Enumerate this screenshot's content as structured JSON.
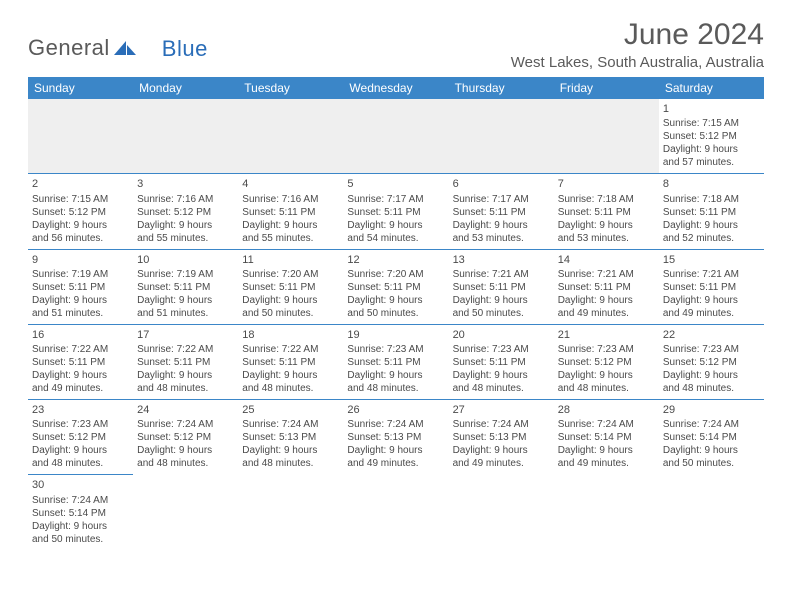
{
  "logo": {
    "text1": "General",
    "text2": "Blue"
  },
  "title": "June 2024",
  "location": "West Lakes, South Australia, Australia",
  "colors": {
    "header_bg": "#3b86c8",
    "header_text": "#ffffff",
    "blank_bg": "#efefef",
    "border": "#3b86c8",
    "text": "#4a4a4a",
    "logo_gray": "#5a5a5a",
    "logo_blue": "#2a6db8"
  },
  "day_headers": [
    "Sunday",
    "Monday",
    "Tuesday",
    "Wednesday",
    "Thursday",
    "Friday",
    "Saturday"
  ],
  "weeks": [
    [
      null,
      null,
      null,
      null,
      null,
      null,
      {
        "n": "1",
        "sr": "7:15 AM",
        "ss": "5:12 PM",
        "dl": "9 hours and 57 minutes."
      }
    ],
    [
      {
        "n": "2",
        "sr": "7:15 AM",
        "ss": "5:12 PM",
        "dl": "9 hours and 56 minutes."
      },
      {
        "n": "3",
        "sr": "7:16 AM",
        "ss": "5:12 PM",
        "dl": "9 hours and 55 minutes."
      },
      {
        "n": "4",
        "sr": "7:16 AM",
        "ss": "5:11 PM",
        "dl": "9 hours and 55 minutes."
      },
      {
        "n": "5",
        "sr": "7:17 AM",
        "ss": "5:11 PM",
        "dl": "9 hours and 54 minutes."
      },
      {
        "n": "6",
        "sr": "7:17 AM",
        "ss": "5:11 PM",
        "dl": "9 hours and 53 minutes."
      },
      {
        "n": "7",
        "sr": "7:18 AM",
        "ss": "5:11 PM",
        "dl": "9 hours and 53 minutes."
      },
      {
        "n": "8",
        "sr": "7:18 AM",
        "ss": "5:11 PM",
        "dl": "9 hours and 52 minutes."
      }
    ],
    [
      {
        "n": "9",
        "sr": "7:19 AM",
        "ss": "5:11 PM",
        "dl": "9 hours and 51 minutes."
      },
      {
        "n": "10",
        "sr": "7:19 AM",
        "ss": "5:11 PM",
        "dl": "9 hours and 51 minutes."
      },
      {
        "n": "11",
        "sr": "7:20 AM",
        "ss": "5:11 PM",
        "dl": "9 hours and 50 minutes."
      },
      {
        "n": "12",
        "sr": "7:20 AM",
        "ss": "5:11 PM",
        "dl": "9 hours and 50 minutes."
      },
      {
        "n": "13",
        "sr": "7:21 AM",
        "ss": "5:11 PM",
        "dl": "9 hours and 50 minutes."
      },
      {
        "n": "14",
        "sr": "7:21 AM",
        "ss": "5:11 PM",
        "dl": "9 hours and 49 minutes."
      },
      {
        "n": "15",
        "sr": "7:21 AM",
        "ss": "5:11 PM",
        "dl": "9 hours and 49 minutes."
      }
    ],
    [
      {
        "n": "16",
        "sr": "7:22 AM",
        "ss": "5:11 PM",
        "dl": "9 hours and 49 minutes."
      },
      {
        "n": "17",
        "sr": "7:22 AM",
        "ss": "5:11 PM",
        "dl": "9 hours and 48 minutes."
      },
      {
        "n": "18",
        "sr": "7:22 AM",
        "ss": "5:11 PM",
        "dl": "9 hours and 48 minutes."
      },
      {
        "n": "19",
        "sr": "7:23 AM",
        "ss": "5:11 PM",
        "dl": "9 hours and 48 minutes."
      },
      {
        "n": "20",
        "sr": "7:23 AM",
        "ss": "5:11 PM",
        "dl": "9 hours and 48 minutes."
      },
      {
        "n": "21",
        "sr": "7:23 AM",
        "ss": "5:12 PM",
        "dl": "9 hours and 48 minutes."
      },
      {
        "n": "22",
        "sr": "7:23 AM",
        "ss": "5:12 PM",
        "dl": "9 hours and 48 minutes."
      }
    ],
    [
      {
        "n": "23",
        "sr": "7:23 AM",
        "ss": "5:12 PM",
        "dl": "9 hours and 48 minutes."
      },
      {
        "n": "24",
        "sr": "7:24 AM",
        "ss": "5:12 PM",
        "dl": "9 hours and 48 minutes."
      },
      {
        "n": "25",
        "sr": "7:24 AM",
        "ss": "5:13 PM",
        "dl": "9 hours and 48 minutes."
      },
      {
        "n": "26",
        "sr": "7:24 AM",
        "ss": "5:13 PM",
        "dl": "9 hours and 49 minutes."
      },
      {
        "n": "27",
        "sr": "7:24 AM",
        "ss": "5:13 PM",
        "dl": "9 hours and 49 minutes."
      },
      {
        "n": "28",
        "sr": "7:24 AM",
        "ss": "5:14 PM",
        "dl": "9 hours and 49 minutes."
      },
      {
        "n": "29",
        "sr": "7:24 AM",
        "ss": "5:14 PM",
        "dl": "9 hours and 50 minutes."
      }
    ],
    [
      {
        "n": "30",
        "sr": "7:24 AM",
        "ss": "5:14 PM",
        "dl": "9 hours and 50 minutes."
      },
      null,
      null,
      null,
      null,
      null,
      null
    ]
  ],
  "labels": {
    "sunrise": "Sunrise:",
    "sunset": "Sunset:",
    "daylight": "Daylight:"
  }
}
